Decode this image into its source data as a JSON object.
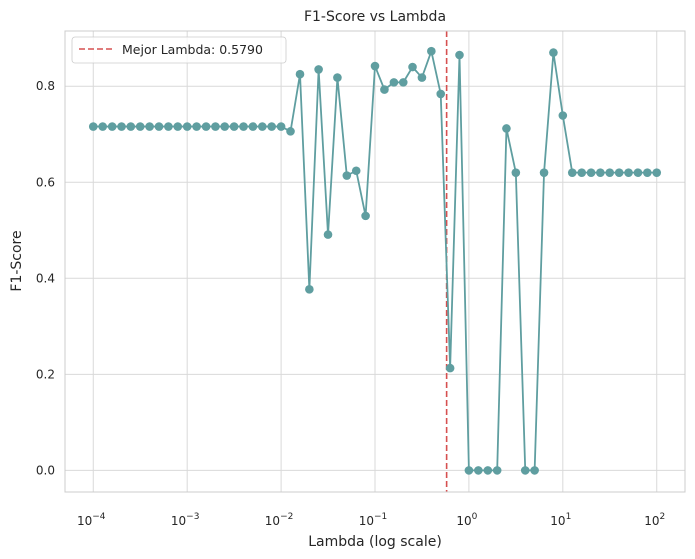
{
  "chart_data": {
    "type": "line",
    "title": "F1-Score vs Lambda",
    "xlabel": "Lambda (log scale)",
    "ylabel": "F1-Score",
    "xscale": "log",
    "xlim": [
      5e-05,
      200
    ],
    "ylim": [
      -0.045,
      0.915
    ],
    "grid": true,
    "legend": "top-left",
    "x_ticks": [
      {
        "base": "10",
        "exp": "−4",
        "value": 0.0001
      },
      {
        "base": "10",
        "exp": "−3",
        "value": 0.001
      },
      {
        "base": "10",
        "exp": "−2",
        "value": 0.01
      },
      {
        "base": "10",
        "exp": "−1",
        "value": 0.1
      },
      {
        "base": "10",
        "exp": "0",
        "value": 1
      },
      {
        "base": "10",
        "exp": "1",
        "value": 10
      },
      {
        "base": "10",
        "exp": "2",
        "value": 100
      }
    ],
    "y_ticks": [
      {
        "label": "0.0",
        "value": 0.0
      },
      {
        "label": "0.2",
        "value": 0.2
      },
      {
        "label": "0.4",
        "value": 0.4
      },
      {
        "label": "0.6",
        "value": 0.6
      },
      {
        "label": "0.8",
        "value": 0.8
      }
    ],
    "series": [
      {
        "color": "#5f9ea0",
        "x": [
          0.0001,
          0.000126,
          0.000159,
          0.0002,
          0.000251,
          0.000316,
          0.000398,
          0.000501,
          0.000631,
          0.000794,
          0.001,
          0.00126,
          0.00159,
          0.002,
          0.00251,
          0.00316,
          0.00398,
          0.00501,
          0.00631,
          0.00794,
          0.01,
          0.0126,
          0.0159,
          0.02,
          0.0251,
          0.0316,
          0.0398,
          0.0501,
          0.0631,
          0.0794,
          0.1,
          0.126,
          0.159,
          0.2,
          0.251,
          0.316,
          0.398,
          0.501,
          0.631,
          0.794,
          1.0,
          1.26,
          1.59,
          2.0,
          2.51,
          3.16,
          3.98,
          5.01,
          6.31,
          7.94,
          10,
          12.6,
          15.9,
          20,
          25.1,
          31.6,
          39.8,
          50.1,
          63.1,
          79.4,
          100
        ],
        "y": [
          0.716,
          0.716,
          0.716,
          0.716,
          0.716,
          0.716,
          0.716,
          0.716,
          0.716,
          0.716,
          0.716,
          0.716,
          0.716,
          0.716,
          0.716,
          0.716,
          0.716,
          0.716,
          0.716,
          0.716,
          0.716,
          0.706,
          0.825,
          0.377,
          0.835,
          0.491,
          0.818,
          0.614,
          0.624,
          0.53,
          0.842,
          0.793,
          0.808,
          0.808,
          0.84,
          0.818,
          0.873,
          0.784,
          0.213,
          0.865,
          0.0,
          0.0,
          0.0,
          0.0,
          0.712,
          0.62,
          0.0,
          0.0,
          0.62,
          0.87,
          0.739,
          0.62,
          0.62,
          0.62,
          0.62,
          0.62,
          0.62,
          0.62,
          0.62,
          0.62,
          0.62
        ]
      }
    ],
    "reference_line": {
      "x": 0.579,
      "color": "#d65050",
      "style": "dashed",
      "label": "Mejor Lambda: 0.5790"
    }
  }
}
